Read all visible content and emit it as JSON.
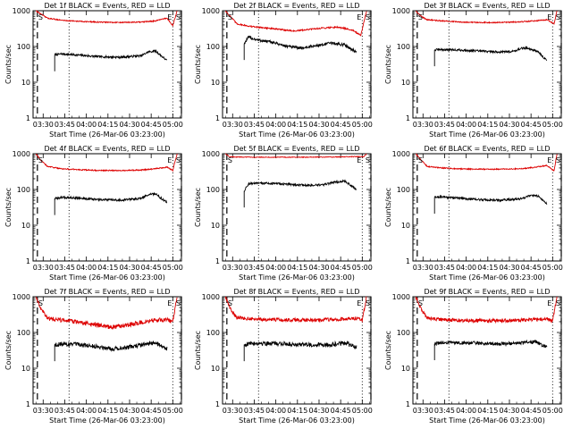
{
  "chart_data": [
    {
      "type": "line",
      "title": "Det 1f BLACK = Events, RED = LLD",
      "ylabel": "Counts/sec",
      "xlabel": "Start Time (26-Mar-06 03:23:00)",
      "x_ticks": [
        "03:30",
        "03:45",
        "04:00",
        "04:15",
        "04:30",
        "04:45",
        "05:00"
      ],
      "y_ticks": [
        "1",
        "10",
        "100",
        "1000"
      ],
      "ylim": [
        1,
        1000
      ],
      "yscale": "log",
      "markers": [
        {
          "label": "S",
          "x_min": 3
        },
        {
          "label": "E",
          "x_min": 97
        },
        {
          "label": "S",
          "x_min": 103
        }
      ],
      "series": [
        {
          "name": "Events",
          "color": "#000000",
          "x_min": [
            15,
            20,
            30,
            45,
            60,
            75,
            80,
            85,
            93
          ],
          "y": [
            58,
            62,
            58,
            52,
            50,
            55,
            70,
            75,
            40
          ],
          "noise": 0.03
        },
        {
          "name": "LLD",
          "color": "#dd0000",
          "x_min": [
            2,
            6,
            10,
            20,
            30,
            45,
            60,
            75,
            85,
            93,
            97,
            100
          ],
          "y": [
            1000,
            780,
            620,
            540,
            510,
            480,
            470,
            480,
            520,
            620,
            380,
            1000
          ],
          "noise": 0.015
        }
      ]
    },
    {
      "type": "line",
      "title": "Det 2f BLACK = Events, RED = LLD",
      "ylabel": "Counts/sec",
      "xlabel": "Start Time (26-Mar-06 03:23:00)",
      "x_ticks": [
        "03:30",
        "03:45",
        "04:00",
        "04:15",
        "04:30",
        "04:45",
        "05:00"
      ],
      "y_ticks": [
        "1",
        "10",
        "100",
        "1000"
      ],
      "ylim": [
        1,
        1000
      ],
      "yscale": "log",
      "markers": [
        {
          "label": "S",
          "x_min": 3
        },
        {
          "label": "E",
          "x_min": 97
        },
        {
          "label": "S",
          "x_min": 103
        }
      ],
      "series": [
        {
          "name": "Events",
          "color": "#000000",
          "x_min": [
            15,
            18,
            25,
            35,
            45,
            55,
            65,
            75,
            85,
            93
          ],
          "y": [
            120,
            180,
            150,
            130,
            100,
            90,
            105,
            125,
            110,
            70
          ],
          "noise": 0.04
        },
        {
          "name": "LLD",
          "color": "#dd0000",
          "x_min": [
            2,
            6,
            10,
            20,
            30,
            40,
            50,
            60,
            70,
            80,
            90,
            96,
            100
          ],
          "y": [
            1000,
            650,
            430,
            360,
            330,
            300,
            270,
            300,
            330,
            350,
            290,
            200,
            1000
          ],
          "noise": 0.02
        }
      ]
    },
    {
      "type": "line",
      "title": "Det 3f BLACK = Events, RED = LLD",
      "ylabel": "Counts/sec",
      "xlabel": "Start Time (26-Mar-06 03:23:00)",
      "x_ticks": [
        "03:30",
        "03:45",
        "04:00",
        "04:15",
        "04:30",
        "04:45",
        "05:00"
      ],
      "y_ticks": [
        "1",
        "10",
        "100",
        "1000"
      ],
      "ylim": [
        1,
        1000
      ],
      "yscale": "log",
      "markers": [
        {
          "label": "S",
          "x_min": 3
        },
        {
          "label": "E",
          "x_min": 97
        },
        {
          "label": "S",
          "x_min": 103
        }
      ],
      "series": [
        {
          "name": "Events",
          "color": "#000000",
          "x_min": [
            15,
            18,
            30,
            45,
            60,
            70,
            75,
            80,
            87,
            93
          ],
          "y": [
            80,
            82,
            80,
            75,
            70,
            74,
            88,
            90,
            70,
            40
          ],
          "noise": 0.03
        },
        {
          "name": "LLD",
          "color": "#dd0000",
          "x_min": [
            2,
            6,
            10,
            20,
            30,
            45,
            60,
            75,
            85,
            93,
            98,
            100
          ],
          "y": [
            1000,
            680,
            560,
            520,
            490,
            470,
            470,
            490,
            520,
            560,
            430,
            1000
          ],
          "noise": 0.015
        }
      ]
    },
    {
      "type": "line",
      "title": "Det 4f BLACK = Events, RED = LLD",
      "ylabel": "Counts/sec",
      "xlabel": "Start Time (26-Mar-06 03:23:00)",
      "x_ticks": [
        "03:30",
        "03:45",
        "04:00",
        "04:15",
        "04:30",
        "04:45",
        "05:00"
      ],
      "y_ticks": [
        "1",
        "10",
        "100",
        "1000"
      ],
      "ylim": [
        1,
        1000
      ],
      "yscale": "log",
      "markers": [
        {
          "label": "S",
          "x_min": 3
        },
        {
          "label": "E",
          "x_min": 97
        },
        {
          "label": "S",
          "x_min": 103
        }
      ],
      "series": [
        {
          "name": "Events",
          "color": "#000000",
          "x_min": [
            15,
            20,
            30,
            45,
            60,
            75,
            80,
            85,
            93
          ],
          "y": [
            55,
            60,
            58,
            52,
            50,
            56,
            72,
            76,
            42
          ],
          "noise": 0.03
        },
        {
          "name": "LLD",
          "color": "#dd0000",
          "x_min": [
            2,
            6,
            10,
            20,
            30,
            45,
            60,
            75,
            85,
            93,
            97,
            100
          ],
          "y": [
            1000,
            620,
            440,
            380,
            360,
            340,
            340,
            350,
            380,
            420,
            340,
            1000
          ],
          "noise": 0.015
        }
      ]
    },
    {
      "type": "line",
      "title": "Det 5f BLACK = Events, RED = LLD",
      "ylabel": "Counts/sec",
      "xlabel": "Start Time (26-Mar-06 03:23:00)",
      "x_ticks": [
        "03:30",
        "03:45",
        "04:00",
        "04:15",
        "04:30",
        "04:45",
        "05:00"
      ],
      "y_ticks": [
        "1",
        "10",
        "100",
        "1000"
      ],
      "ylim": [
        1,
        1000
      ],
      "yscale": "log",
      "markers": [
        {
          "label": "S",
          "x_min": 3
        },
        {
          "label": "E",
          "x_min": 97
        },
        {
          "label": "S",
          "x_min": 103
        }
      ],
      "series": [
        {
          "name": "Events",
          "color": "#000000",
          "x_min": [
            15,
            18,
            30,
            45,
            60,
            70,
            78,
            85,
            93
          ],
          "y": [
            90,
            145,
            150,
            140,
            130,
            135,
            160,
            170,
            100
          ],
          "noise": 0.03
        },
        {
          "name": "LLD",
          "color": "#dd0000",
          "x_min": [
            2,
            5,
            10,
            20,
            30,
            45,
            60,
            75,
            85,
            93,
            98,
            100
          ],
          "y": [
            1000,
            820,
            810,
            800,
            800,
            800,
            800,
            810,
            820,
            830,
            820,
            1000
          ],
          "noise": 0.01
        }
      ]
    },
    {
      "type": "line",
      "title": "Det 6f BLACK = Events, RED = LLD",
      "ylabel": "Counts/sec",
      "xlabel": "Start Time (26-Mar-06 03:23:00)",
      "x_ticks": [
        "03:30",
        "03:45",
        "04:00",
        "04:15",
        "04:30",
        "04:45",
        "05:00"
      ],
      "y_ticks": [
        "1",
        "10",
        "100",
        "1000"
      ],
      "ylim": [
        1,
        1000
      ],
      "yscale": "log",
      "markers": [
        {
          "label": "S",
          "x_min": 3
        },
        {
          "label": "E",
          "x_min": 97
        },
        {
          "label": "S",
          "x_min": 103
        }
      ],
      "series": [
        {
          "name": "Events",
          "color": "#000000",
          "x_min": [
            15,
            20,
            30,
            45,
            60,
            75,
            82,
            87,
            93
          ],
          "y": [
            60,
            62,
            58,
            52,
            50,
            55,
            68,
            66,
            40
          ],
          "noise": 0.03
        },
        {
          "name": "LLD",
          "color": "#dd0000",
          "x_min": [
            2,
            6,
            10,
            20,
            30,
            45,
            60,
            75,
            85,
            93,
            98,
            100
          ],
          "y": [
            1000,
            640,
            440,
            400,
            380,
            370,
            370,
            380,
            420,
            470,
            330,
            1000
          ],
          "noise": 0.015
        }
      ]
    },
    {
      "type": "line",
      "title": "Det 7f BLACK = Events, RED = LLD",
      "ylabel": "Counts/sec",
      "xlabel": "Start Time (26-Mar-06 03:23:00)",
      "x_ticks": [
        "03:30",
        "03:45",
        "04:00",
        "04:15",
        "04:30",
        "04:45",
        "05:00"
      ],
      "y_ticks": [
        "1",
        "10",
        "100",
        "1000"
      ],
      "ylim": [
        1,
        1000
      ],
      "yscale": "log",
      "markers": [
        {
          "label": "S",
          "x_min": 3
        },
        {
          "label": "E",
          "x_min": 97
        },
        {
          "label": "S",
          "x_min": 103
        }
      ],
      "series": [
        {
          "name": "Events",
          "color": "#000000",
          "x_min": [
            15,
            20,
            30,
            45,
            55,
            65,
            75,
            85,
            93
          ],
          "y": [
            45,
            48,
            46,
            40,
            35,
            38,
            45,
            50,
            35
          ],
          "noise": 0.06
        },
        {
          "name": "LLD",
          "color": "#dd0000",
          "x_min": [
            2,
            6,
            10,
            20,
            30,
            45,
            55,
            65,
            75,
            85,
            93,
            97,
            100
          ],
          "y": [
            1000,
            420,
            250,
            220,
            200,
            160,
            140,
            160,
            190,
            220,
            230,
            200,
            1000
          ],
          "noise": 0.06
        }
      ]
    },
    {
      "type": "line",
      "title": "Det 8f BLACK = Events, RED = LLD",
      "ylabel": "Counts/sec",
      "xlabel": "Start Time (26-Mar-06 03:23:00)",
      "x_ticks": [
        "03:30",
        "03:45",
        "04:00",
        "04:15",
        "04:30",
        "04:45",
        "05:00"
      ],
      "y_ticks": [
        "1",
        "10",
        "100",
        "1000"
      ],
      "ylim": [
        1,
        1000
      ],
      "yscale": "log",
      "markers": [
        {
          "label": "S",
          "x_min": 3
        },
        {
          "label": "E",
          "x_min": 97
        },
        {
          "label": "S",
          "x_min": 103
        }
      ],
      "series": [
        {
          "name": "Events",
          "color": "#000000",
          "x_min": [
            15,
            20,
            30,
            45,
            60,
            75,
            85,
            93
          ],
          "y": [
            45,
            50,
            50,
            48,
            45,
            46,
            50,
            40
          ],
          "noise": 0.06
        },
        {
          "name": "LLD",
          "color": "#dd0000",
          "x_min": [
            2,
            6,
            10,
            20,
            30,
            45,
            60,
            75,
            85,
            93,
            97,
            100
          ],
          "y": [
            1000,
            420,
            260,
            240,
            230,
            225,
            220,
            230,
            240,
            250,
            220,
            1000
          ],
          "noise": 0.05
        }
      ]
    },
    {
      "type": "line",
      "title": "Det 9f BLACK = Events, RED = LLD",
      "ylabel": "Counts/sec",
      "xlabel": "Start Time (26-Mar-06 03:23:00)",
      "x_ticks": [
        "03:30",
        "03:45",
        "04:00",
        "04:15",
        "04:30",
        "04:45",
        "05:00"
      ],
      "y_ticks": [
        "1",
        "10",
        "100",
        "1000"
      ],
      "ylim": [
        1,
        1000
      ],
      "yscale": "log",
      "markers": [
        {
          "label": "S",
          "x_min": 3
        },
        {
          "label": "E",
          "x_min": 97
        },
        {
          "label": "S",
          "x_min": 103
        }
      ],
      "series": [
        {
          "name": "Events",
          "color": "#000000",
          "x_min": [
            15,
            20,
            30,
            45,
            60,
            75,
            85,
            93
          ],
          "y": [
            48,
            52,
            52,
            50,
            48,
            50,
            55,
            38
          ],
          "noise": 0.05
        },
        {
          "name": "LLD",
          "color": "#dd0000",
          "x_min": [
            2,
            6,
            10,
            20,
            30,
            45,
            60,
            75,
            85,
            93,
            97,
            100
          ],
          "y": [
            1000,
            420,
            250,
            230,
            220,
            215,
            215,
            220,
            230,
            240,
            210,
            1000
          ],
          "noise": 0.05
        }
      ]
    }
  ]
}
